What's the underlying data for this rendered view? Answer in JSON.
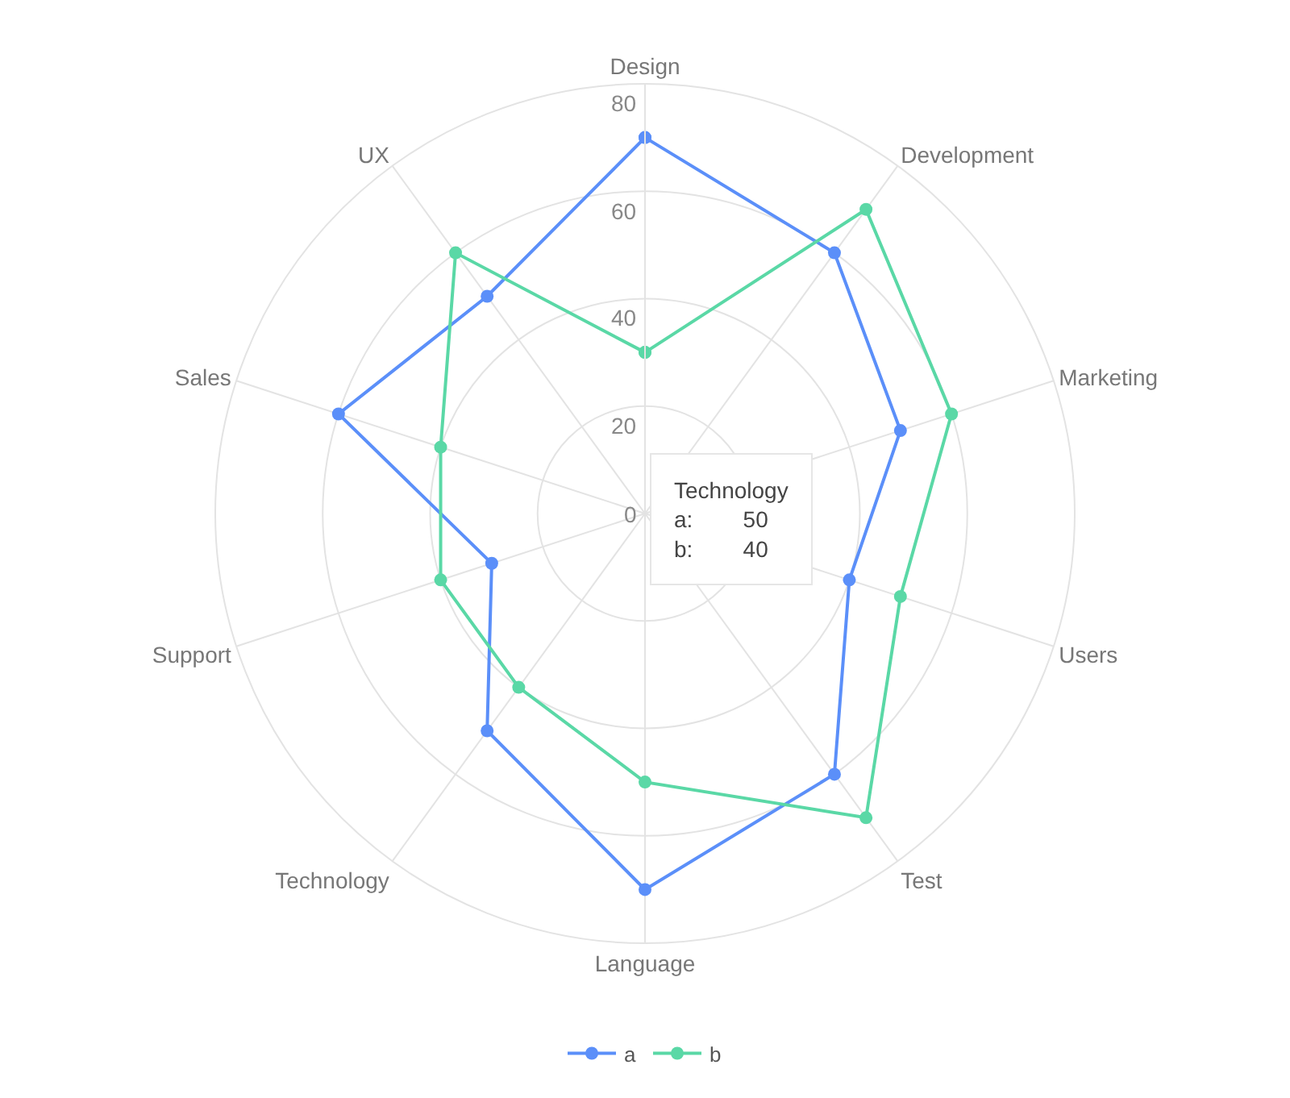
{
  "chart_data": {
    "type": "radar",
    "categories": [
      "Design",
      "Development",
      "Marketing",
      "Users",
      "Test",
      "Language",
      "Technology",
      "Support",
      "Sales",
      "UX"
    ],
    "series": [
      {
        "name": "a",
        "color": "#5b8ff9",
        "values": [
          70,
          60,
          50,
          40,
          60,
          70,
          50,
          30,
          60,
          50
        ]
      },
      {
        "name": "b",
        "color": "#5ad8a6",
        "values": [
          30,
          70,
          60,
          50,
          70,
          50,
          40,
          40,
          40,
          60
        ]
      }
    ],
    "ylim": [
      0,
      80
    ],
    "yticks": [
      0,
      20,
      40,
      60,
      80
    ],
    "grid": true,
    "legend": "bottom",
    "marker": "circle",
    "line_style": "solid",
    "annotations": [
      "Technology",
      "a:        50",
      "b:        40"
    ]
  }
}
